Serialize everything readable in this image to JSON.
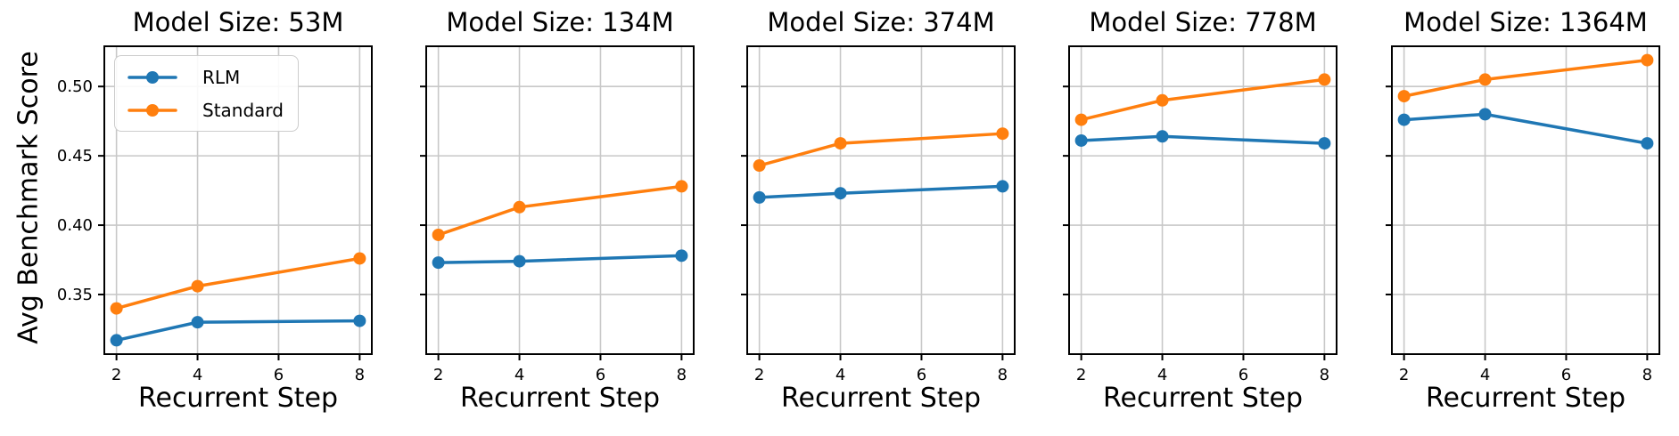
{
  "figure": {
    "ylabel": "Avg Benchmark Score",
    "colors": {
      "rlm": "#1f77b4",
      "standard": "#ff7f0e",
      "grid": "#c8c8c8",
      "spine": "#000000",
      "background": "#ffffff"
    },
    "x_axis": {
      "min": 1.7,
      "max": 8.3,
      "ticks": [
        2,
        4,
        6,
        8
      ],
      "tick_labels": [
        "2",
        "4",
        "6",
        "8"
      ]
    },
    "y_axis": {
      "min": 0.307,
      "max": 0.529,
      "ticks": [
        0.35,
        0.4,
        0.45,
        0.5
      ],
      "tick_labels": [
        "0.35",
        "0.40",
        "0.45",
        "0.50"
      ]
    },
    "legend": {
      "position": "upper-left-first-panel",
      "items": [
        {
          "label": "RLM",
          "color": "#1f77b4"
        },
        {
          "label": "Standard",
          "color": "#ff7f0e"
        }
      ]
    },
    "grid": true
  },
  "chart_data": [
    {
      "type": "line",
      "title": "Model Size: 53M",
      "xlabel": "Recurrent Step",
      "x": [
        2,
        4,
        8
      ],
      "series": [
        {
          "name": "RLM",
          "color": "#1f77b4",
          "values": [
            0.317,
            0.33,
            0.331
          ]
        },
        {
          "name": "Standard",
          "color": "#ff7f0e",
          "values": [
            0.34,
            0.356,
            0.376
          ]
        }
      ],
      "show_y_tick_labels": true,
      "show_legend": true
    },
    {
      "type": "line",
      "title": "Model Size: 134M",
      "xlabel": "Recurrent Step",
      "x": [
        2,
        4,
        8
      ],
      "series": [
        {
          "name": "RLM",
          "color": "#1f77b4",
          "values": [
            0.373,
            0.374,
            0.378
          ]
        },
        {
          "name": "Standard",
          "color": "#ff7f0e",
          "values": [
            0.393,
            0.413,
            0.428
          ]
        }
      ],
      "show_y_tick_labels": false,
      "show_legend": false
    },
    {
      "type": "line",
      "title": "Model Size: 374M",
      "xlabel": "Recurrent Step",
      "x": [
        2,
        4,
        8
      ],
      "series": [
        {
          "name": "RLM",
          "color": "#1f77b4",
          "values": [
            0.42,
            0.423,
            0.428
          ]
        },
        {
          "name": "Standard",
          "color": "#ff7f0e",
          "values": [
            0.443,
            0.459,
            0.466
          ]
        }
      ],
      "show_y_tick_labels": false,
      "show_legend": false
    },
    {
      "type": "line",
      "title": "Model Size: 778M",
      "xlabel": "Recurrent Step",
      "x": [
        2,
        4,
        8
      ],
      "series": [
        {
          "name": "RLM",
          "color": "#1f77b4",
          "values": [
            0.461,
            0.464,
            0.459
          ]
        },
        {
          "name": "Standard",
          "color": "#ff7f0e",
          "values": [
            0.476,
            0.49,
            0.505
          ]
        }
      ],
      "show_y_tick_labels": false,
      "show_legend": false
    },
    {
      "type": "line",
      "title": "Model Size: 1364M",
      "xlabel": "Recurrent Step",
      "x": [
        2,
        4,
        8
      ],
      "series": [
        {
          "name": "RLM",
          "color": "#1f77b4",
          "values": [
            0.476,
            0.48,
            0.459
          ]
        },
        {
          "name": "Standard",
          "color": "#ff7f0e",
          "values": [
            0.493,
            0.505,
            0.519
          ]
        }
      ],
      "show_y_tick_labels": false,
      "show_legend": false
    }
  ]
}
